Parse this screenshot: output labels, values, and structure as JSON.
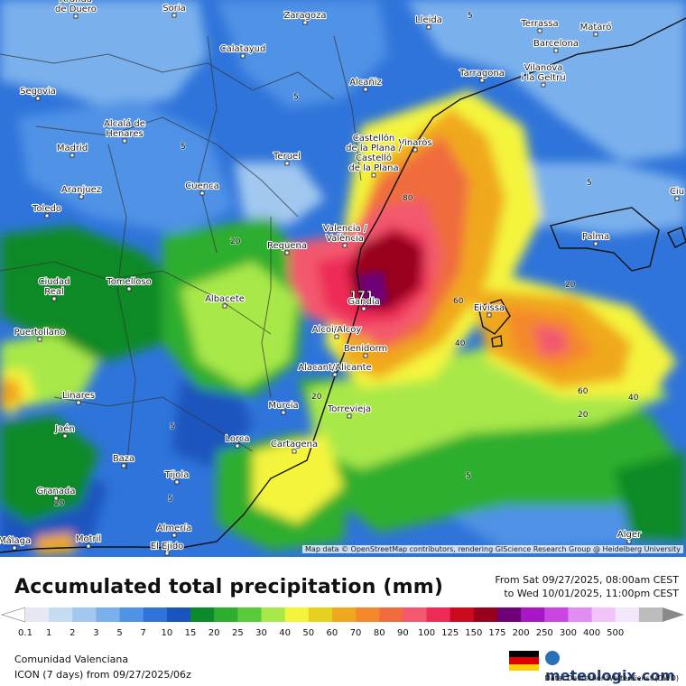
{
  "title": "Accumulated total precipitation (mm)",
  "period": {
    "from": "From Sat 09/27/2025, 08:00am CEST",
    "to": "to Wed 10/01/2025, 11:00pm CEST"
  },
  "attribution": "Map data © OpenStreetMap contributors, rendering GIScience Research Group @ Heidelberg University",
  "region": "Comunidad Valenciana",
  "model": "ICON (7 days)  from  09/27/2025/06z",
  "data_source": "Data: Deutscher Wetterdienst  (DWD)",
  "logo": "meteologix.com",
  "max_value_label": "171",
  "scale": {
    "unit": "mm",
    "ticks": [
      "0.1",
      "1",
      "2",
      "3",
      "5",
      "7",
      "10",
      "15",
      "20",
      "25",
      "30",
      "40",
      "50",
      "60",
      "70",
      "80",
      "90",
      "100",
      "125",
      "150",
      "175",
      "200",
      "250",
      "300",
      "400",
      "500"
    ],
    "colors": [
      "#e8e8f4",
      "#c6dcf2",
      "#a2c8f0",
      "#7ab0ec",
      "#4f92e6",
      "#2f74da",
      "#1a54be",
      "#0a8a28",
      "#2eae2e",
      "#5acc3a",
      "#a8e84a",
      "#f4f43c",
      "#e6d21e",
      "#f0a81e",
      "#f5882c",
      "#f06c3c",
      "#f3586e",
      "#ee2a56",
      "#cc0a1e",
      "#98001c",
      "#6e0078",
      "#a816c6",
      "#cc44e2",
      "#e08cf2",
      "#f2c4fa",
      "#f4e6fc",
      "#bcbcbc"
    ]
  },
  "cities": [
    {
      "name": "Aranda de Duero"
    },
    {
      "name": "Soria"
    },
    {
      "name": "Zaragoza"
    },
    {
      "name": "Lleida"
    },
    {
      "name": "Terrassa"
    },
    {
      "name": "Mataró"
    },
    {
      "name": "Barcelona"
    },
    {
      "name": "Calatayud"
    },
    {
      "name": "Tarragona"
    },
    {
      "name": "Vilanova i la Geltrú"
    },
    {
      "name": "Segovia"
    },
    {
      "name": "Alcañiz"
    },
    {
      "name": "Alcalá de Henares"
    },
    {
      "name": "Madrid"
    },
    {
      "name": "Teruel"
    },
    {
      "name": "Vinaròs"
    },
    {
      "name": "Castellón de la Plana / Castelló de la Plana"
    },
    {
      "name": "Aranjuez"
    },
    {
      "name": "Cuenca"
    },
    {
      "name": "Toledo"
    },
    {
      "name": "Palma"
    },
    {
      "name": "Requena"
    },
    {
      "name": "València / Valencia"
    },
    {
      "name": "Tomelloso"
    },
    {
      "name": "Albacete"
    },
    {
      "name": "Gandia"
    },
    {
      "name": "Ciudad Real"
    },
    {
      "name": "Eivissa"
    },
    {
      "name": "Puertollano"
    },
    {
      "name": "Alcoi/Alcoy"
    },
    {
      "name": "Benidorm"
    },
    {
      "name": "Alacant/Alicante"
    },
    {
      "name": "Linares"
    },
    {
      "name": "Murcia"
    },
    {
      "name": "Torrevieja"
    },
    {
      "name": "Jaén"
    },
    {
      "name": "Lorca"
    },
    {
      "name": "Cartagena"
    },
    {
      "name": "Baza"
    },
    {
      "name": "Tíjola"
    },
    {
      "name": "Granada"
    },
    {
      "name": "Almería"
    },
    {
      "name": "Motril"
    },
    {
      "name": "El Ejido"
    },
    {
      "name": "Málaga"
    },
    {
      "name": "Alger"
    },
    {
      "name": "Ciu"
    }
  ],
  "contour_labels": [
    "5",
    "20",
    "40",
    "60",
    "80"
  ]
}
